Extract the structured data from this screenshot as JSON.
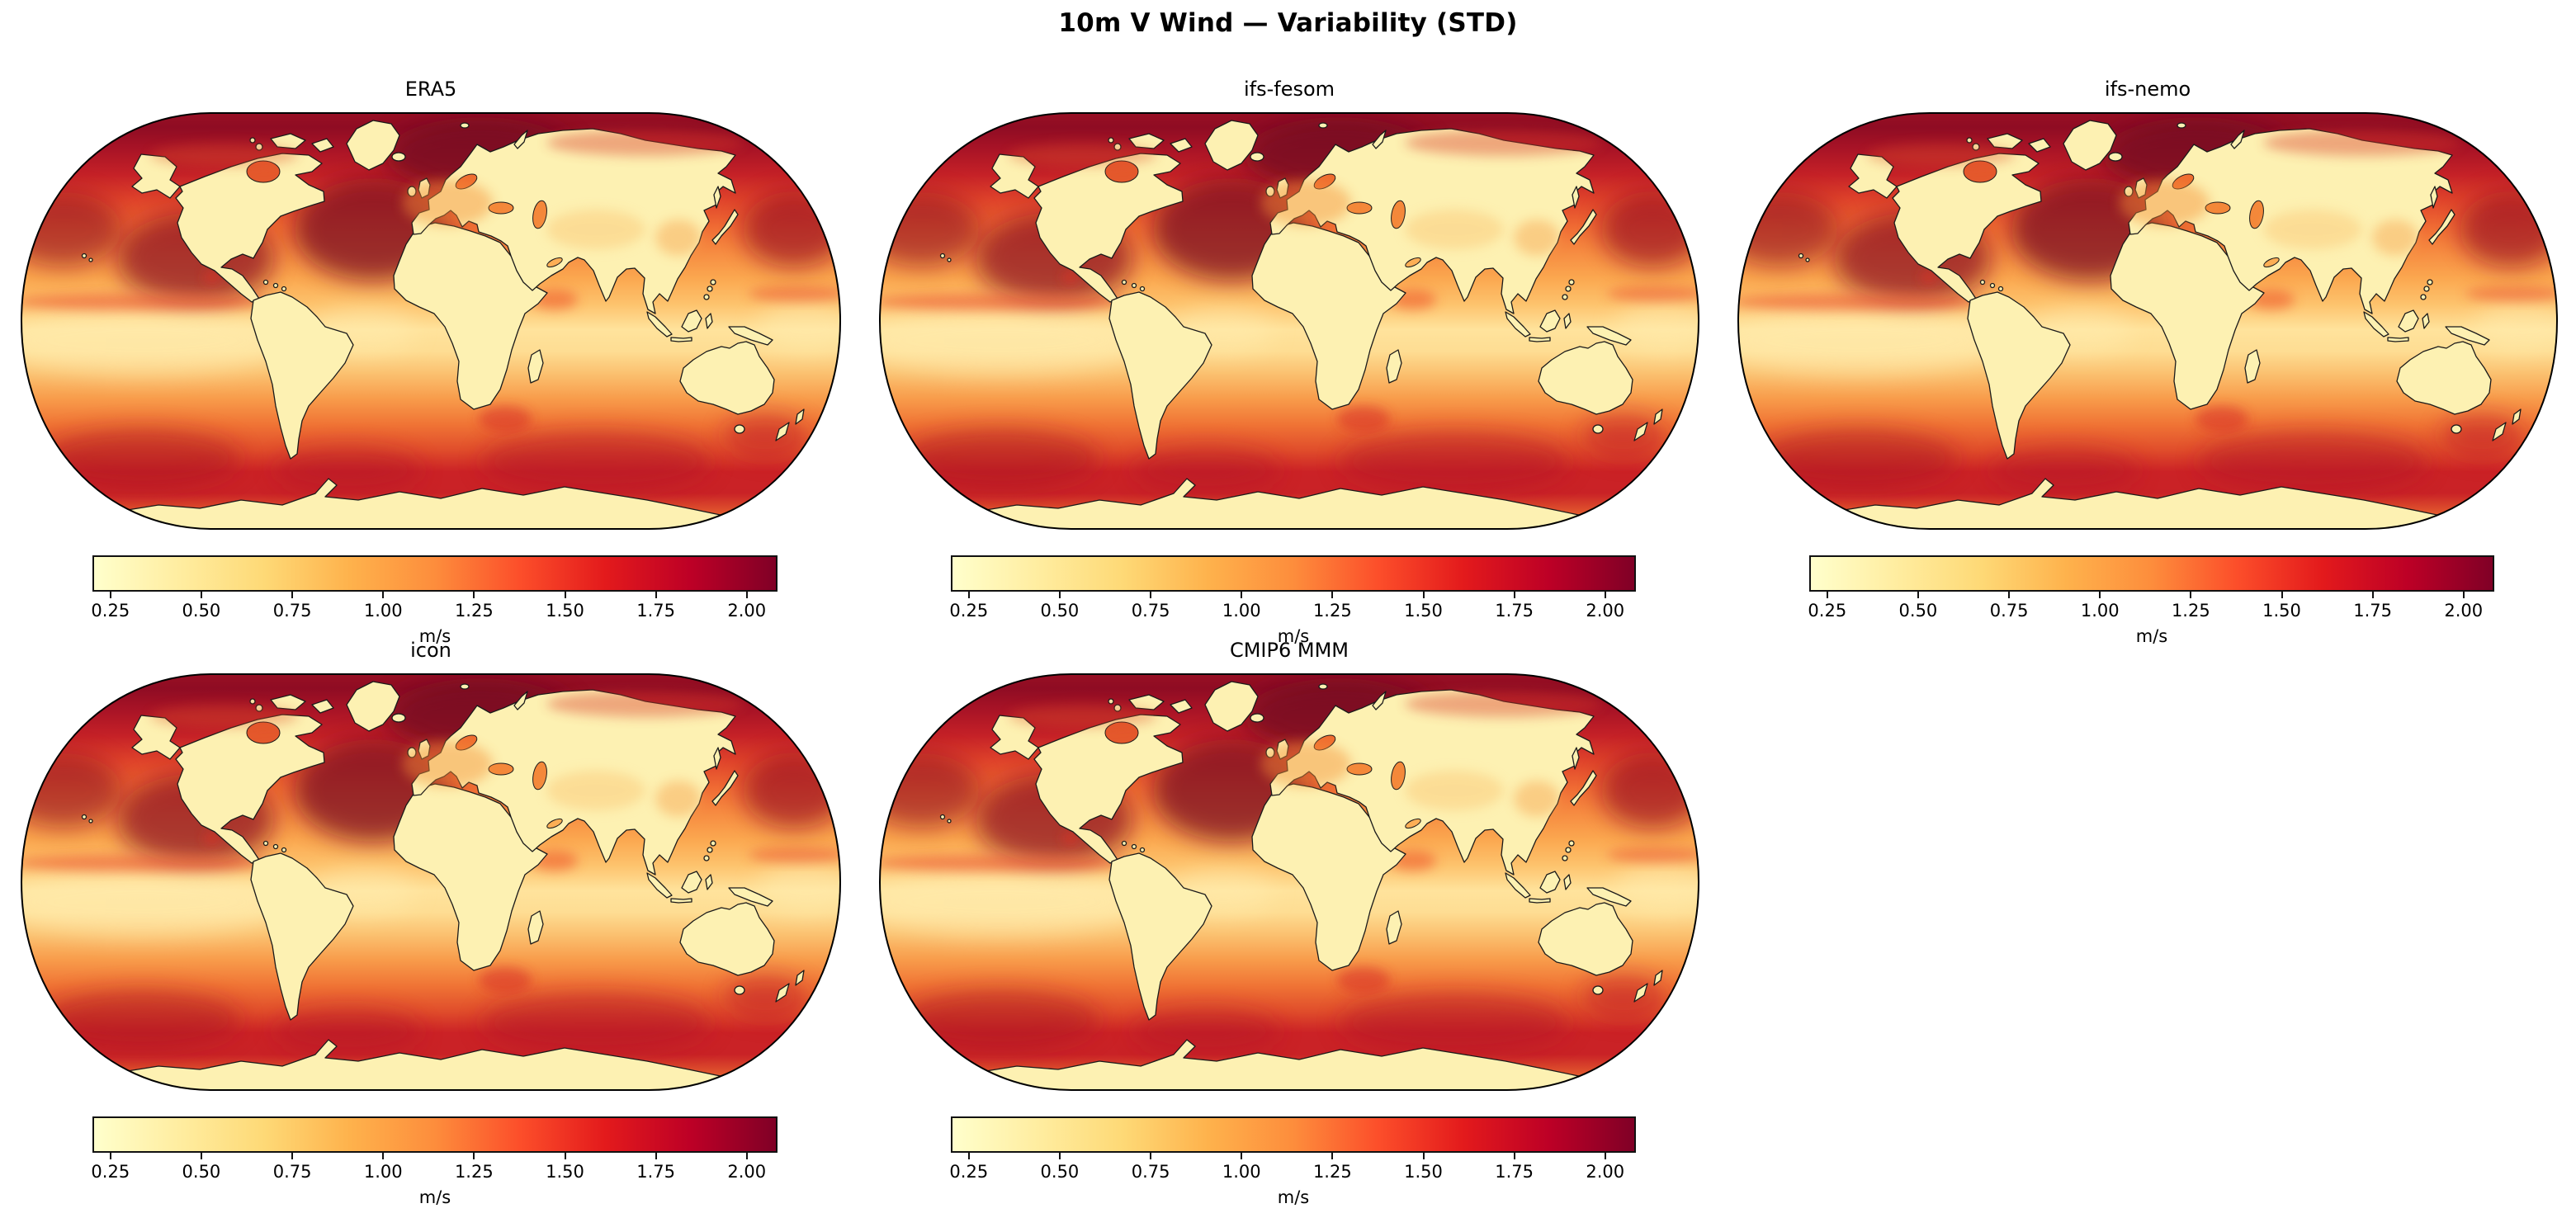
{
  "figure": {
    "title": "10m V Wind — Variability (STD)",
    "background_color": "#ffffff"
  },
  "panels": [
    {
      "title": "ERA5"
    },
    {
      "title": "ifs-fesom"
    },
    {
      "title": "ifs-nemo"
    },
    {
      "title": "icon"
    },
    {
      "title": "CMIP6 MMM"
    }
  ],
  "chart_data": {
    "type": "heatmap",
    "subtype": "global-map-grid",
    "title": "10m V Wind — Variability (STD)",
    "variable": "10m meridional (V) wind standard deviation",
    "units": "m/s",
    "panels": [
      "ERA5",
      "ifs-fesom",
      "ifs-nemo",
      "icon",
      "CMIP6 MMM"
    ],
    "grid": {
      "rows": 2,
      "cols": 3,
      "empty_cells": [
        "row2-col3"
      ]
    },
    "projection": "Robinson",
    "colorbar": {
      "orientation": "horizontal",
      "label": "m/s",
      "vmin": 0.205,
      "vmax": 2.08,
      "ticks": [
        0.25,
        0.5,
        0.75,
        1.0,
        1.25,
        1.5,
        1.75,
        2.0
      ],
      "tick_labels": [
        "0.25",
        "0.50",
        "0.75",
        "1.00",
        "1.25",
        "1.50",
        "1.75",
        "2.00"
      ],
      "colormap": "YlOrRd",
      "colormap_stops": [
        {
          "pos": 0.0,
          "color": "#ffffcc"
        },
        {
          "pos": 0.125,
          "color": "#ffeda0"
        },
        {
          "pos": 0.25,
          "color": "#fed976"
        },
        {
          "pos": 0.375,
          "color": "#feb24c"
        },
        {
          "pos": 0.5,
          "color": "#fd8d3c"
        },
        {
          "pos": 0.625,
          "color": "#fc4e2a"
        },
        {
          "pos": 0.75,
          "color": "#e31a1c"
        },
        {
          "pos": 0.875,
          "color": "#bd0026"
        },
        {
          "pos": 1.0,
          "color": "#800026"
        }
      ]
    },
    "map_features": {
      "land_color": "#fdf1b2",
      "coastline_color": "#1a1a1a",
      "high_variability_regions": [
        "North Atlantic / Norwegian Sea",
        "Gulf of Alaska / North Pacific",
        "Northwest Pacific",
        "Southern Ocean",
        "Tasman Sea"
      ],
      "low_variability_regions": [
        "continental interiors",
        "equatorial eastern Pacific",
        "equatorial Atlantic"
      ]
    }
  }
}
